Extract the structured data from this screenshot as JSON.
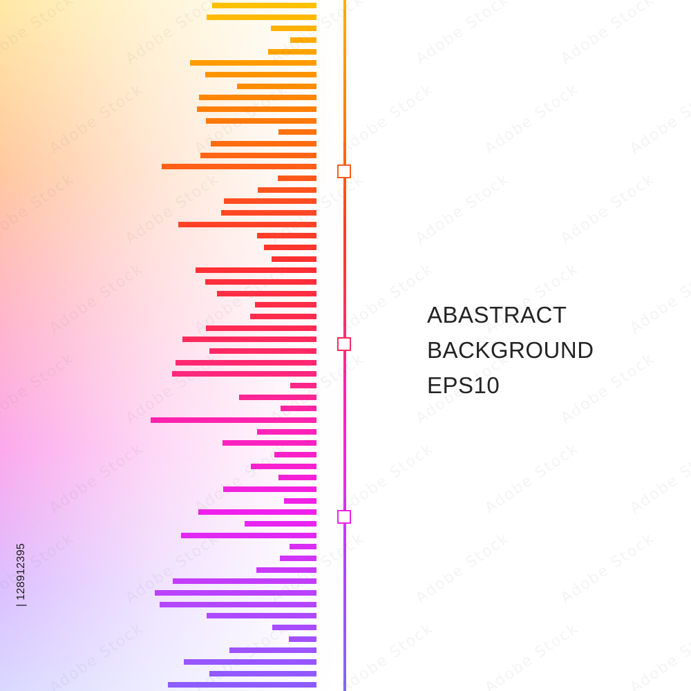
{
  "headline": {
    "line1": "ABASTRACT",
    "line2": "BACKGROUND",
    "line3": "EPS10"
  },
  "stock_id": "| 128912395",
  "colors": {
    "bar_gradient_stops": [
      "#ffc000",
      "#ff8a00",
      "#ff5a1a",
      "#ff3030",
      "#ff2a5e",
      "#ff22b8",
      "#ee20ee",
      "#b545ff",
      "#8c5cff"
    ],
    "track_line": "#ff3a1f",
    "text": "#232323",
    "background": "#ffffff"
  },
  "bars": [
    {
      "left": 307
    },
    {
      "left": 299
    },
    {
      "left": 392
    },
    {
      "left": 420
    },
    {
      "left": 388
    },
    {
      "left": 275
    },
    {
      "left": 297
    },
    {
      "left": 343
    },
    {
      "left": 288
    },
    {
      "left": 285
    },
    {
      "left": 298
    },
    {
      "left": 403
    },
    {
      "left": 305
    },
    {
      "left": 290
    },
    {
      "left": 234
    },
    {
      "left": 402
    },
    {
      "left": 373
    },
    {
      "left": 324
    },
    {
      "left": 320
    },
    {
      "left": 258
    },
    {
      "left": 372
    },
    {
      "left": 382
    },
    {
      "left": 393
    },
    {
      "left": 283
    },
    {
      "left": 297
    },
    {
      "left": 314
    },
    {
      "left": 369
    },
    {
      "left": 362
    },
    {
      "left": 298
    },
    {
      "left": 264
    },
    {
      "left": 303
    },
    {
      "left": 254
    },
    {
      "left": 249
    },
    {
      "left": 420
    },
    {
      "left": 346
    },
    {
      "left": 406
    },
    {
      "left": 218
    },
    {
      "left": 372
    },
    {
      "left": 322
    },
    {
      "left": 397
    },
    {
      "left": 363
    },
    {
      "left": 403
    },
    {
      "left": 323
    },
    {
      "left": 411
    },
    {
      "left": 287
    },
    {
      "left": 354
    },
    {
      "left": 262
    },
    {
      "left": 419
    },
    {
      "left": 405
    },
    {
      "left": 371
    },
    {
      "left": 250
    },
    {
      "left": 224
    },
    {
      "left": 231
    },
    {
      "left": 299
    },
    {
      "left": 394
    },
    {
      "left": 418
    },
    {
      "left": 332
    },
    {
      "left": 266
    },
    {
      "left": 303
    },
    {
      "left": 243
    }
  ],
  "markers": [
    {
      "position": 0.25
    },
    {
      "position": 0.5
    },
    {
      "position": 0.75
    }
  ],
  "watermark_text": "Adobe Stock"
}
